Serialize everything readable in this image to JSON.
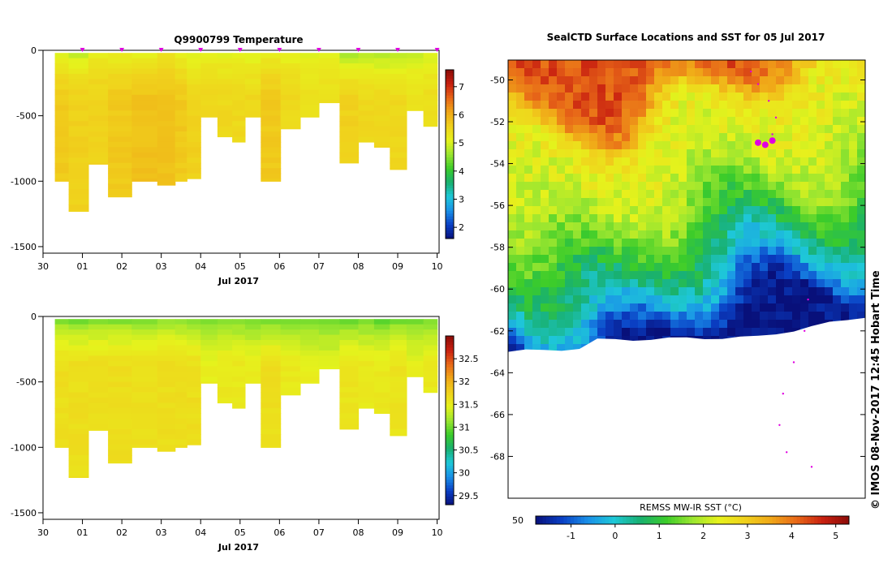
{
  "colors": {
    "temperature_scale": [
      "#08107a",
      "#0a3fc4",
      "#1a90e8",
      "#1ec8d8",
      "#18b070",
      "#3ccc2a",
      "#9ae630",
      "#e6f21c",
      "#f0d21c",
      "#f0a818",
      "#e86818",
      "#c82010",
      "#8c0c08"
    ],
    "salinity_scale": [
      "#08107a",
      "#0a3fc4",
      "#1a90e8",
      "#1ec8d8",
      "#18b070",
      "#3ccc2a",
      "#9ae630",
      "#e6f21c",
      "#f0d21c",
      "#f0a818",
      "#e86818",
      "#c82010",
      "#8c0c08"
    ],
    "sst_scale": [
      "#08107a",
      "#0a3fc4",
      "#1a90e8",
      "#1ec8d8",
      "#18b070",
      "#3ccc2a",
      "#9ae630",
      "#e6f21c",
      "#f0d21c",
      "#f0a818",
      "#e86818",
      "#c82010",
      "#8c0c08"
    ],
    "marker": "#e000e0",
    "frame": "#000000"
  },
  "chart_data": [
    {
      "type": "heatmap",
      "id": "temperature",
      "title": "Q9900799  Temperature",
      "xlabel": "Jul 2017",
      "ylabel": "",
      "x_tick_labels": [
        "30",
        "01",
        "02",
        "03",
        "04",
        "05",
        "06",
        "07",
        "08",
        "09",
        "10"
      ],
      "x_ticks": [
        0,
        1,
        2,
        3,
        4,
        5,
        6,
        7,
        8,
        9,
        10
      ],
      "xlim": [
        0,
        10.05
      ],
      "y_ticks": [
        0,
        -500,
        -1000,
        -1500
      ],
      "y_tick_labels": [
        "0",
        "-500",
        "-1000",
        "-1500"
      ],
      "ylim": [
        -1550,
        0
      ],
      "colorbar_ticks": [
        2,
        3,
        4,
        5,
        6,
        7
      ],
      "colorbar_labels": [
        "2",
        "3",
        "4",
        "5",
        "6",
        "7"
      ],
      "colorbar_range": [
        1.6,
        7.6
      ],
      "profile_markers_days": [
        1,
        2,
        3,
        4,
        5,
        6,
        7,
        8,
        9,
        10
      ],
      "profiles": [
        {
          "t": 0.4,
          "depth": 1000,
          "surface": 4.9,
          "deep": 5.7
        },
        {
          "t": 0.9,
          "depth": 1230,
          "surface": 4.7,
          "deep": 5.6
        },
        {
          "t": 1.4,
          "depth": 870,
          "surface": 5.1,
          "deep": 5.6
        },
        {
          "t": 1.9,
          "depth": 1120,
          "surface": 5.0,
          "deep": 5.7
        },
        {
          "t": 2.6,
          "depth": 1000,
          "surface": 4.9,
          "deep": 5.8
        },
        {
          "t": 3.2,
          "depth": 1030,
          "surface": 5.2,
          "deep": 5.8
        },
        {
          "t": 3.5,
          "depth": 1000,
          "surface": 5.0,
          "deep": 5.7
        },
        {
          "t": 3.8,
          "depth": 980,
          "surface": 4.8,
          "deep": 5.6
        },
        {
          "t": 4.2,
          "depth": 510,
          "surface": 5.1,
          "deep": 5.5
        },
        {
          "t": 4.65,
          "depth": 660,
          "surface": 5.0,
          "deep": 5.5
        },
        {
          "t": 4.95,
          "depth": 700,
          "surface": 5.0,
          "deep": 5.5
        },
        {
          "t": 5.3,
          "depth": 510,
          "surface": 4.9,
          "deep": 5.5
        },
        {
          "t": 5.75,
          "depth": 1000,
          "surface": 5.0,
          "deep": 5.7
        },
        {
          "t": 6.3,
          "depth": 600,
          "surface": 5.0,
          "deep": 5.5
        },
        {
          "t": 6.75,
          "depth": 510,
          "surface": 4.9,
          "deep": 5.4
        },
        {
          "t": 7.25,
          "depth": 400,
          "surface": 5.0,
          "deep": 5.4
        },
        {
          "t": 7.8,
          "depth": 860,
          "surface": 4.5,
          "deep": 5.6
        },
        {
          "t": 8.2,
          "depth": 700,
          "surface": 4.6,
          "deep": 5.5
        },
        {
          "t": 8.6,
          "depth": 740,
          "surface": 4.5,
          "deep": 5.5
        },
        {
          "t": 9.0,
          "depth": 910,
          "surface": 4.6,
          "deep": 5.5
        },
        {
          "t": 9.45,
          "depth": 460,
          "surface": 4.7,
          "deep": 5.4
        },
        {
          "t": 9.85,
          "depth": 580,
          "surface": 4.9,
          "deep": 5.4
        }
      ]
    },
    {
      "type": "heatmap",
      "id": "salinity",
      "title": "",
      "xlabel": "Jul 2017",
      "ylabel": "",
      "x_tick_labels": [
        "30",
        "01",
        "02",
        "03",
        "04",
        "05",
        "06",
        "07",
        "08",
        "09",
        "10"
      ],
      "x_ticks": [
        0,
        1,
        2,
        3,
        4,
        5,
        6,
        7,
        8,
        9,
        10
      ],
      "xlim": [
        0,
        10.05
      ],
      "y_ticks": [
        0,
        -500,
        -1000,
        -1500
      ],
      "y_tick_labels": [
        "0",
        "-500",
        "-1000",
        "-1500"
      ],
      "ylim": [
        -1550,
        0
      ],
      "colorbar_ticks": [
        29.5,
        30,
        30.5,
        31,
        31.5,
        32,
        32.5
      ],
      "colorbar_labels": [
        "29.5",
        "30",
        "30.5",
        "31",
        "31.5",
        "32",
        "32.5"
      ],
      "colorbar_range": [
        29.3,
        33.0
      ],
      "profiles": [
        {
          "t": 0.4,
          "depth": 1000,
          "surface": 30.9,
          "deep": 31.65
        },
        {
          "t": 0.9,
          "depth": 1230,
          "surface": 30.85,
          "deep": 31.65
        },
        {
          "t": 1.4,
          "depth": 870,
          "surface": 30.9,
          "deep": 31.65
        },
        {
          "t": 1.9,
          "depth": 1120,
          "surface": 30.9,
          "deep": 31.65
        },
        {
          "t": 2.6,
          "depth": 1000,
          "surface": 30.9,
          "deep": 31.65
        },
        {
          "t": 3.2,
          "depth": 1030,
          "surface": 30.95,
          "deep": 31.65
        },
        {
          "t": 3.5,
          "depth": 1000,
          "surface": 30.95,
          "deep": 31.65
        },
        {
          "t": 3.8,
          "depth": 980,
          "surface": 30.9,
          "deep": 31.65
        },
        {
          "t": 4.2,
          "depth": 510,
          "surface": 30.9,
          "deep": 31.5
        },
        {
          "t": 4.65,
          "depth": 660,
          "surface": 30.9,
          "deep": 31.55
        },
        {
          "t": 4.95,
          "depth": 700,
          "surface": 30.9,
          "deep": 31.55
        },
        {
          "t": 5.3,
          "depth": 510,
          "surface": 30.9,
          "deep": 31.5
        },
        {
          "t": 5.75,
          "depth": 1000,
          "surface": 30.85,
          "deep": 31.65
        },
        {
          "t": 6.3,
          "depth": 600,
          "surface": 30.9,
          "deep": 31.55
        },
        {
          "t": 6.75,
          "depth": 510,
          "surface": 30.9,
          "deep": 31.5
        },
        {
          "t": 7.25,
          "depth": 400,
          "surface": 30.9,
          "deep": 31.45
        },
        {
          "t": 7.8,
          "depth": 860,
          "surface": 30.8,
          "deep": 31.6
        },
        {
          "t": 8.2,
          "depth": 700,
          "surface": 30.85,
          "deep": 31.55
        },
        {
          "t": 8.6,
          "depth": 740,
          "surface": 30.8,
          "deep": 31.55
        },
        {
          "t": 9.0,
          "depth": 910,
          "surface": 30.85,
          "deep": 31.6
        },
        {
          "t": 9.45,
          "depth": 460,
          "surface": 30.85,
          "deep": 31.5
        },
        {
          "t": 9.85,
          "depth": 580,
          "surface": 30.9,
          "deep": 31.55
        }
      ]
    },
    {
      "type": "heatmap",
      "id": "sst_map",
      "title": "SealCTD Surface Locations and SST for 05 Jul 2017",
      "ylabel": "",
      "y_ticks": [
        -50,
        -52,
        -54,
        -56,
        -58,
        -60,
        -62,
        -64,
        -66,
        -68
      ],
      "y_tick_labels": [
        "-50",
        "-52",
        "-54",
        "-56",
        "-58",
        "-60",
        "-62",
        "-64",
        "-66",
        "-68"
      ],
      "ylim": [
        -70.0,
        -49.05
      ],
      "colorbar_label": "REMSS MW-IR SST (°C)",
      "colorbar_ticks": [
        -1,
        0,
        1,
        2,
        3,
        4,
        5
      ],
      "colorbar_tick_labels": [
        "-1",
        "0",
        "1",
        "2",
        "3",
        "4",
        "5"
      ],
      "colorbar_range": [
        -1.8,
        5.3
      ],
      "left_axis_label": "50",
      "sst_profile_by_latitude": [
        {
          "lat": -49.2,
          "sst": 4.3
        },
        {
          "lat": -50.5,
          "sst": 3.6
        },
        {
          "lat": -51.5,
          "sst": 2.6
        },
        {
          "lat": -52.5,
          "sst": 2.4
        },
        {
          "lat": -54.0,
          "sst": 2.2
        },
        {
          "lat": -55.5,
          "sst": 1.9
        },
        {
          "lat": -57.0,
          "sst": 1.3
        },
        {
          "lat": -58.5,
          "sst": 0.6
        },
        {
          "lat": -60.0,
          "sst": -0.2
        },
        {
          "lat": -61.0,
          "sst": -1.0
        },
        {
          "lat": -62.0,
          "sst": -1.7
        }
      ],
      "ice_edge_lat": -62.2,
      "seal_positions": [
        {
          "lon_frac": 0.74,
          "lat": -52.9,
          "kind": "latest"
        },
        {
          "lon_frac": 0.72,
          "lat": -53.1,
          "kind": "latest"
        },
        {
          "lon_frac": 0.7,
          "lat": -53.0,
          "kind": "latest"
        }
      ],
      "track_points": [
        {
          "lon_frac": 0.68,
          "lat": -49.6
        },
        {
          "lon_frac": 0.7,
          "lat": -50.2
        },
        {
          "lon_frac": 0.73,
          "lat": -51.0
        },
        {
          "lon_frac": 0.75,
          "lat": -51.8
        },
        {
          "lon_frac": 0.74,
          "lat": -52.6
        },
        {
          "lon_frac": 0.84,
          "lat": -60.5
        },
        {
          "lon_frac": 0.83,
          "lat": -62.0
        },
        {
          "lon_frac": 0.8,
          "lat": -63.5
        },
        {
          "lon_frac": 0.77,
          "lat": -65.0
        },
        {
          "lon_frac": 0.76,
          "lat": -66.5
        },
        {
          "lon_frac": 0.78,
          "lat": -67.8
        },
        {
          "lon_frac": 0.85,
          "lat": -68.5
        }
      ]
    }
  ],
  "credit": "©  IMOS 08-Nov-2017 12:45 Hobart Time"
}
